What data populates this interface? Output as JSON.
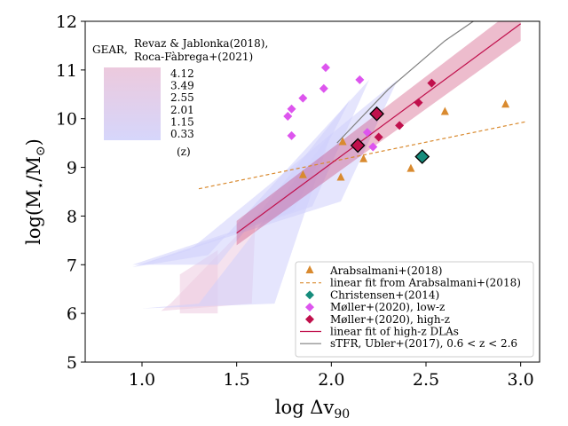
{
  "chart_data": {
    "type": "scatter",
    "xlabel": "log Δv",
    "xlabel_sub": "90",
    "ylabel": "log(M",
    "ylabel_sub": "⋆",
    "ylabel_mid": "/M",
    "ylabel_sub2": "⊙",
    "ylabel_end": ")",
    "xlim": [
      0.7,
      3.1
    ],
    "ylim": [
      5,
      12
    ],
    "xticks": [
      1.0,
      1.5,
      2.0,
      2.5,
      3.0
    ],
    "xtick_labels": [
      "1.0",
      "1.5",
      "2.0",
      "2.5",
      "3.0"
    ],
    "yticks": [
      5,
      6,
      7,
      8,
      9,
      10,
      11,
      12
    ],
    "ytick_labels": [
      "5",
      "6",
      "7",
      "8",
      "9",
      "10",
      "11",
      "12"
    ],
    "gear_label": "GEAR,",
    "gear_refs": [
      "Revaz & Jablonka(2018),",
      "Roca-Fàbrega+(2021)"
    ],
    "redshift_levels": [
      "4.12",
      "3.49",
      "2.55",
      "2.01",
      "1.15",
      "0.33"
    ],
    "redshift_unit": "(z)",
    "colors": {
      "arabsalmani": "#d98a2f",
      "christensen": "#168c7c",
      "moller_low": "#dd55ee",
      "moller_high": "#c0104c",
      "high_z_fit": "#c0104c",
      "ubler": "#7f7f7f",
      "gear_low": "#cfd0fb",
      "gear_high": "#eccbe0"
    },
    "series": [
      {
        "name": "Arabsalmani+(2018)",
        "marker": "triangle",
        "points": [
          [
            1.85,
            8.85
          ],
          [
            2.06,
            9.53
          ],
          [
            2.05,
            8.8
          ],
          [
            2.17,
            9.18
          ],
          [
            2.42,
            8.98
          ],
          [
            2.6,
            10.15
          ],
          [
            2.92,
            10.3
          ]
        ]
      },
      {
        "name": "linear fit from Arabsalmani+(2018)",
        "marker": "dashed-line",
        "points": [
          [
            1.3,
            8.56
          ],
          [
            3.03,
            9.94
          ]
        ]
      },
      {
        "name": "Christensen+(2014)",
        "marker": "diamond",
        "points": [
          [
            2.48,
            9.22
          ]
        ]
      },
      {
        "name": "Møller+(2020), low-z",
        "marker": "diamond",
        "points": [
          [
            1.97,
            11.05
          ],
          [
            2.15,
            10.8
          ],
          [
            1.85,
            10.42
          ],
          [
            1.96,
            10.62
          ],
          [
            1.79,
            10.2
          ],
          [
            1.77,
            10.05
          ],
          [
            1.79,
            9.65
          ],
          [
            2.19,
            9.72
          ],
          [
            2.22,
            9.42
          ]
        ]
      },
      {
        "name": "Møller+(2020), high-z",
        "marker": "diamond",
        "points": [
          [
            2.53,
            10.73
          ],
          [
            2.46,
            10.33
          ],
          [
            2.36,
            9.86
          ],
          [
            2.25,
            9.62
          ],
          [
            2.24,
            10.1
          ],
          [
            2.14,
            9.45
          ]
        ]
      },
      {
        "name": "linear fit of high-z DLAs",
        "marker": "line",
        "points": [
          [
            1.5,
            7.65
          ],
          [
            3.0,
            11.95
          ]
        ]
      },
      {
        "name": "sTFR, Ubler+(2017), 0.6 < z < 2.6",
        "marker": "gray-line",
        "points": [
          [
            2.03,
            9.5
          ],
          [
            2.3,
            10.6
          ],
          [
            2.6,
            11.6
          ],
          [
            2.75,
            12.0
          ]
        ]
      }
    ],
    "highlighted_points": [
      [
        2.14,
        9.45
      ],
      [
        2.24,
        10.1
      ],
      [
        2.48,
        9.22
      ]
    ],
    "fit_band": {
      "x": [
        1.5,
        3.0
      ],
      "lower": [
        7.4,
        11.6
      ],
      "upper": [
        7.9,
        12.35
      ]
    },
    "gear_regions": [
      {
        "z": "4.12",
        "x": [
          1.2,
          1.2,
          1.4,
          1.4
        ],
        "y": [
          6.0,
          6.8,
          7.3,
          6.0
        ]
      },
      {
        "z": "3.49",
        "x": [
          1.1,
          1.15,
          1.6,
          1.58
        ],
        "y": [
          6.05,
          6.2,
          8.0,
          6.2
        ]
      },
      {
        "z": "2.55",
        "x": [
          1.0,
          1.3,
          2.0,
          1.7
        ],
        "y": [
          6.1,
          6.2,
          9.7,
          6.2
        ]
      },
      {
        "z": "2.01",
        "x": [
          0.95,
          1.4,
          2.1,
          1.8
        ],
        "y": [
          7.0,
          7.0,
          10.4,
          8.1
        ]
      },
      {
        "z": "1.15",
        "x": [
          0.95,
          1.35,
          2.2,
          1.9
        ],
        "y": [
          6.95,
          7.2,
          10.8,
          8.2
        ]
      },
      {
        "z": "0.33",
        "x": [
          0.95,
          1.25,
          2.35,
          2.05
        ],
        "y": [
          6.95,
          7.3,
          10.8,
          8.3
        ]
      }
    ],
    "legend": {
      "position": "lower-right",
      "entries": [
        "Arabsalmani+(2018)",
        "linear fit from Arabsalmani+(2018)",
        "Christensen+(2014)",
        "Møller+(2020), low-z",
        "Møller+(2020), high-z",
        "linear fit of high-z DLAs",
        "sTFR, Ubler+(2017), 0.6 < z < 2.6"
      ]
    }
  }
}
